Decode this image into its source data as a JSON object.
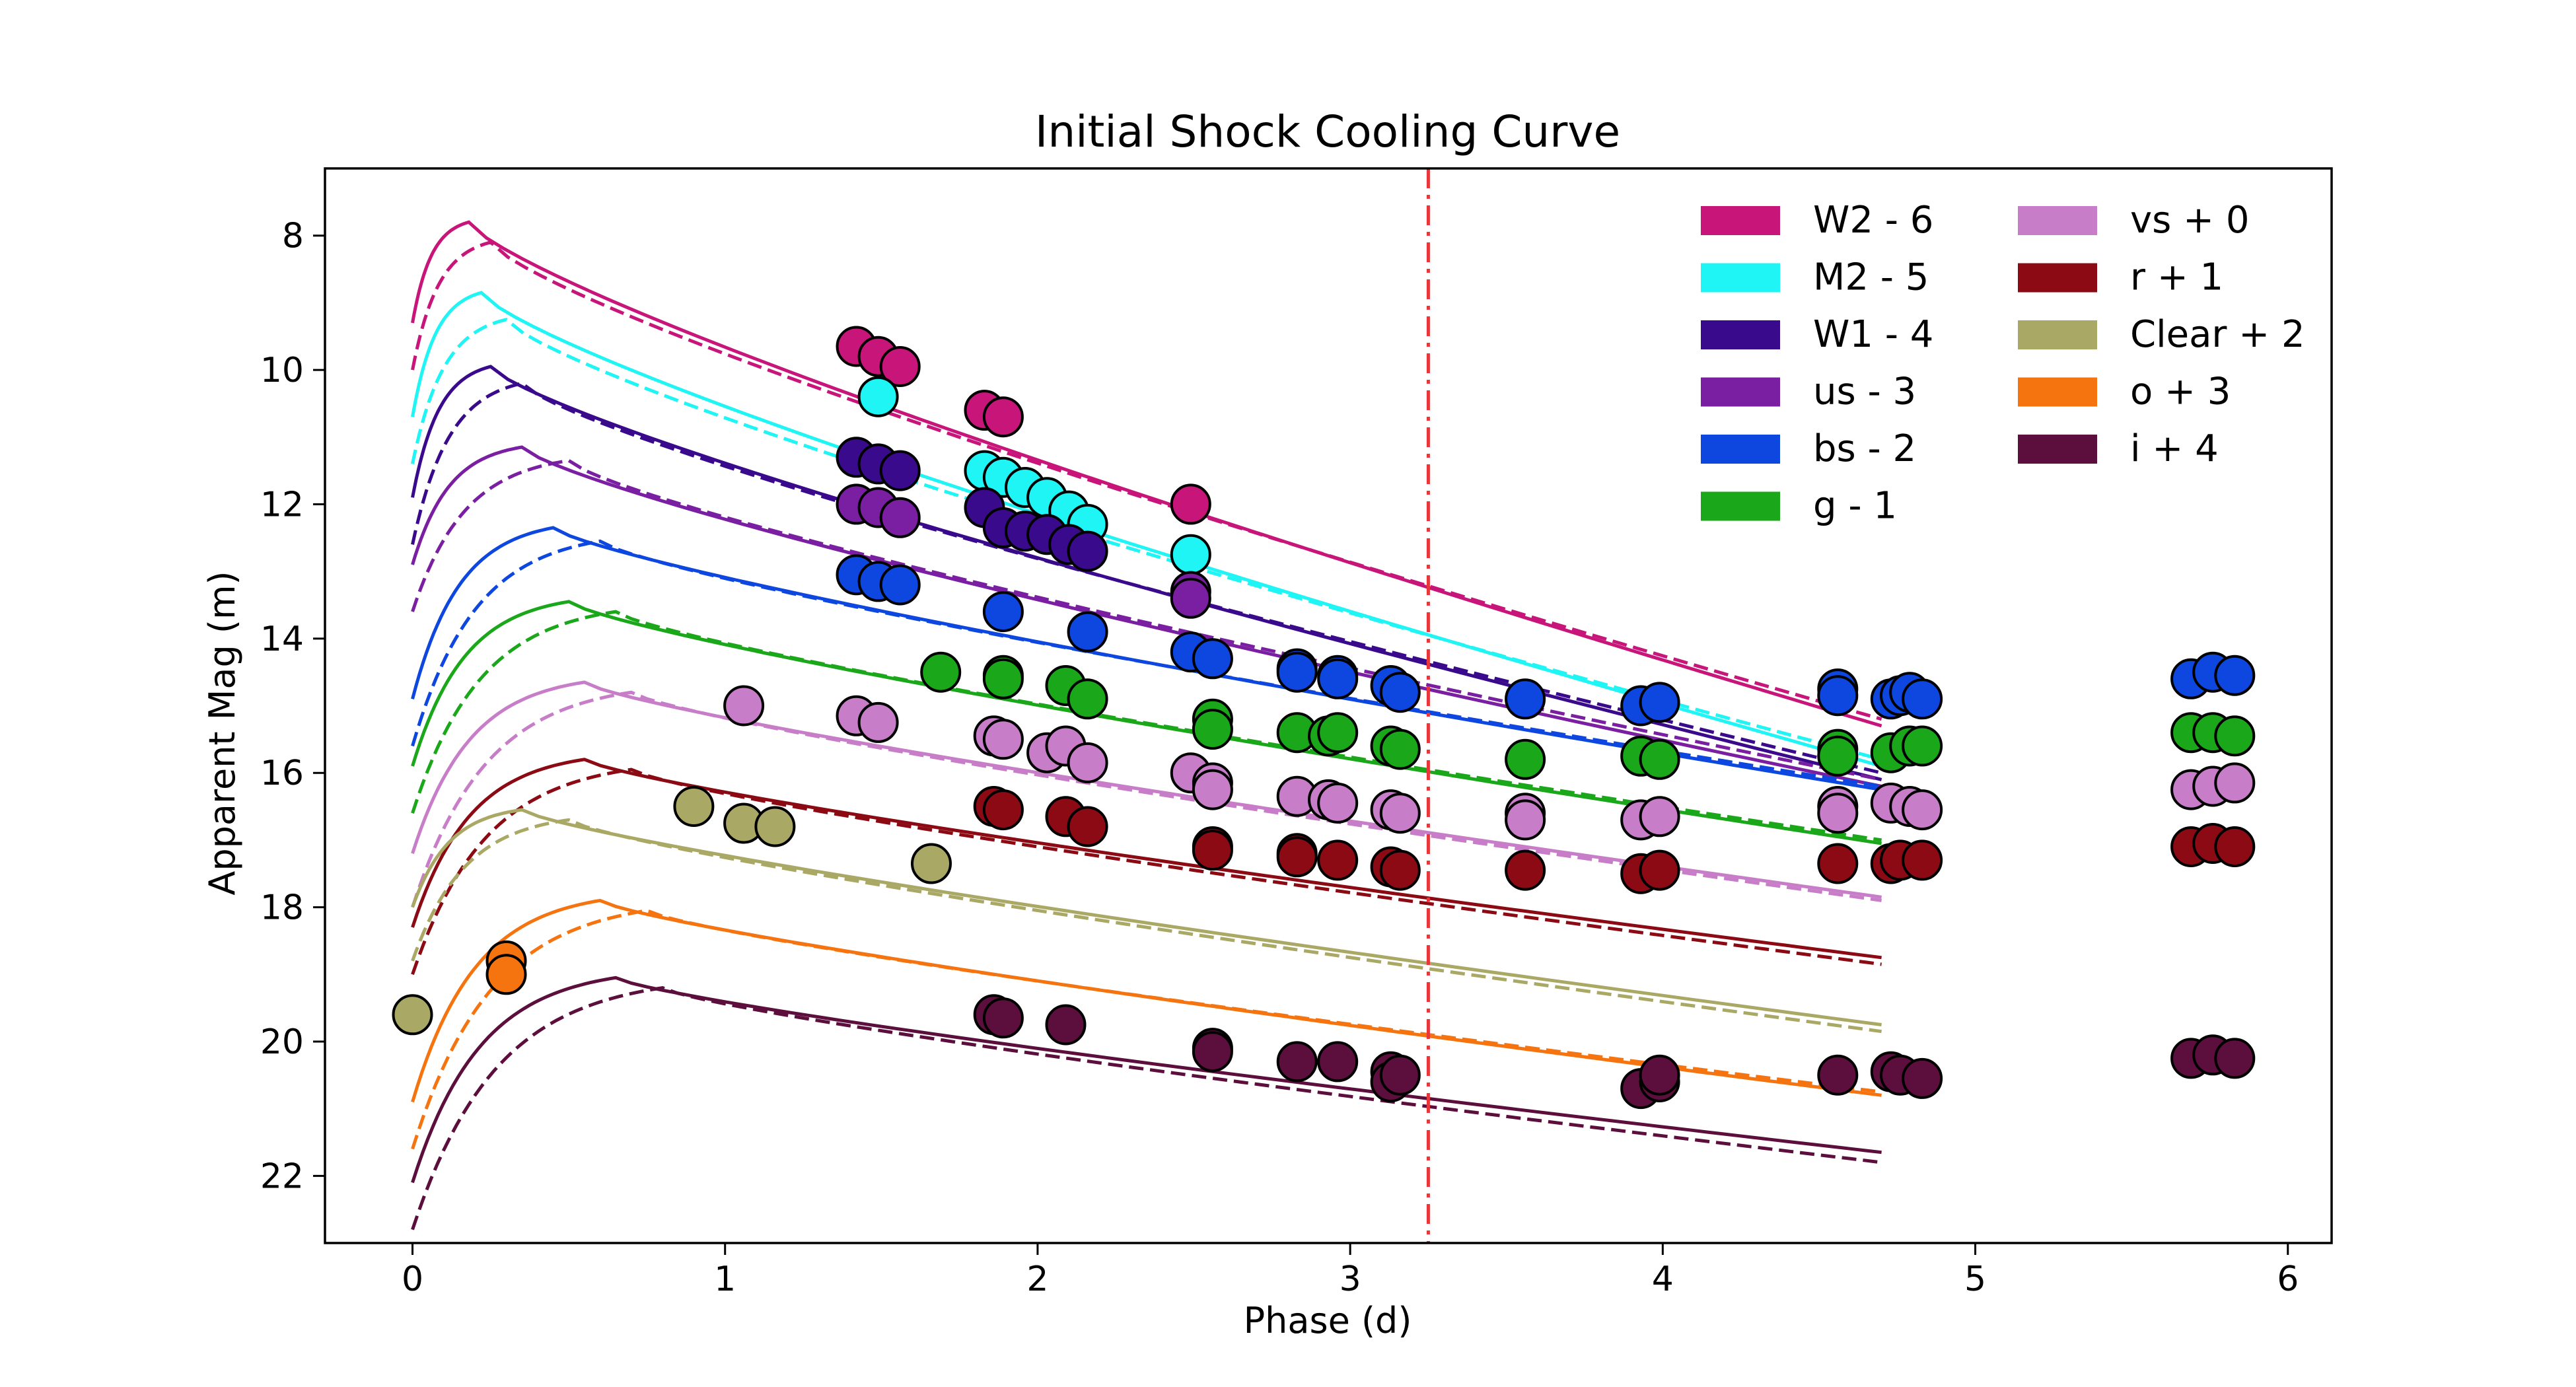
{
  "chart_data": {
    "type": "scatter",
    "title": "Initial Shock Cooling Curve",
    "xlabel": "Phase (d)",
    "ylabel": "Apparent Mag (m)",
    "xlim": [
      -0.28,
      6.14
    ],
    "ylim": [
      23.0,
      7.0
    ],
    "y_inverted": true,
    "x_ticks": [
      0,
      1,
      2,
      3,
      4,
      5,
      6
    ],
    "y_ticks": [
      8,
      10,
      12,
      14,
      16,
      18,
      20,
      22
    ],
    "grid": false,
    "legend_position": "top-right",
    "legend_columns": 2,
    "vertical_line": {
      "x": 3.25,
      "color": "#e8363a",
      "style": "dash-dot"
    },
    "model_lines": "solid and dashed model curves drawn per band",
    "series": [
      {
        "name": "W2 - 6",
        "color": "#c8157a",
        "model": {
          "t0": 0.0,
          "m0": 9.3,
          "peak_t": 0.18,
          "peak_m": 7.8,
          "end_t": 4.7,
          "end_m": 15.3
        },
        "model_dashed": {
          "t0": 0.0,
          "m0": 10.0,
          "peak_t": 0.25,
          "peak_m": 8.1,
          "end_t": 4.7,
          "end_m": 15.2
        },
        "points": [
          [
            1.42,
            9.65
          ],
          [
            1.49,
            9.8
          ],
          [
            1.56,
            9.95
          ],
          [
            1.83,
            10.6
          ],
          [
            1.89,
            10.7
          ],
          [
            2.49,
            12.0
          ]
        ]
      },
      {
        "name": "M2 - 5",
        "color": "#1ff5f5",
        "model": {
          "t0": 0.0,
          "m0": 10.7,
          "peak_t": 0.22,
          "peak_m": 8.85,
          "end_t": 4.7,
          "end_m": 15.9
        },
        "model_dashed": {
          "t0": 0.0,
          "m0": 11.4,
          "peak_t": 0.3,
          "peak_m": 9.25,
          "end_t": 4.7,
          "end_m": 15.8
        },
        "points": [
          [
            1.49,
            10.4
          ],
          [
            1.83,
            11.5
          ],
          [
            1.89,
            11.6
          ],
          [
            1.96,
            11.75
          ],
          [
            2.03,
            11.9
          ],
          [
            2.1,
            12.1
          ],
          [
            2.16,
            12.3
          ],
          [
            2.49,
            12.75
          ]
        ]
      },
      {
        "name": "W1 - 4",
        "color": "#3a0a8c",
        "model": {
          "t0": 0.0,
          "m0": 11.9,
          "peak_t": 0.25,
          "peak_m": 9.95,
          "end_t": 4.7,
          "end_m": 16.1
        },
        "model_dashed": {
          "t0": 0.0,
          "m0": 12.6,
          "peak_t": 0.35,
          "peak_m": 10.2,
          "end_t": 4.7,
          "end_m": 16.0
        },
        "points": [
          [
            1.42,
            11.3
          ],
          [
            1.49,
            11.4
          ],
          [
            1.56,
            11.5
          ],
          [
            1.83,
            12.05
          ],
          [
            1.89,
            12.35
          ],
          [
            1.96,
            12.4
          ],
          [
            2.03,
            12.45
          ],
          [
            2.1,
            12.6
          ],
          [
            2.16,
            12.7
          ]
        ]
      },
      {
        "name": "us - 3",
        "color": "#7b1fa2",
        "model": {
          "t0": 0.0,
          "m0": 12.9,
          "peak_t": 0.35,
          "peak_m": 11.15,
          "end_t": 4.7,
          "end_m": 16.2
        },
        "model_dashed": {
          "t0": 0.0,
          "m0": 13.6,
          "peak_t": 0.5,
          "peak_m": 11.35,
          "end_t": 4.7,
          "end_m": 16.1
        },
        "points": [
          [
            1.42,
            12.0
          ],
          [
            1.49,
            12.05
          ],
          [
            1.56,
            12.2
          ],
          [
            2.49,
            13.3
          ],
          [
            2.49,
            13.4
          ]
        ]
      },
      {
        "name": "bs - 2",
        "color": "#0d47e0",
        "model": {
          "t0": 0.0,
          "m0": 14.9,
          "peak_t": 0.45,
          "peak_m": 12.35,
          "end_t": 4.7,
          "end_m": 16.25
        },
        "model_dashed": {
          "t0": 0.0,
          "m0": 15.6,
          "peak_t": 0.6,
          "peak_m": 12.55,
          "end_t": 4.7,
          "end_m": 16.2
        },
        "points": [
          [
            1.42,
            13.05
          ],
          [
            1.49,
            13.15
          ],
          [
            1.56,
            13.2
          ],
          [
            1.89,
            13.6
          ],
          [
            2.16,
            13.9
          ],
          [
            2.49,
            14.2
          ],
          [
            2.56,
            14.3
          ],
          [
            2.83,
            14.45
          ],
          [
            2.83,
            14.5
          ],
          [
            2.96,
            14.55
          ],
          [
            2.96,
            14.6
          ],
          [
            3.13,
            14.7
          ],
          [
            3.16,
            14.8
          ],
          [
            3.56,
            14.9
          ],
          [
            3.93,
            15.0
          ],
          [
            3.99,
            14.95
          ],
          [
            4.56,
            14.75
          ],
          [
            4.56,
            14.85
          ],
          [
            4.73,
            14.9
          ],
          [
            4.76,
            14.85
          ],
          [
            4.79,
            14.8
          ],
          [
            4.83,
            14.9
          ],
          [
            5.69,
            14.6
          ],
          [
            5.76,
            14.5
          ],
          [
            5.83,
            14.55
          ]
        ]
      },
      {
        "name": "g - 1",
        "color": "#1aa81a",
        "model": {
          "t0": 0.0,
          "m0": 15.9,
          "peak_t": 0.5,
          "peak_m": 13.45,
          "end_t": 4.7,
          "end_m": 17.05
        },
        "model_dashed": {
          "t0": 0.0,
          "m0": 16.6,
          "peak_t": 0.65,
          "peak_m": 13.6,
          "end_t": 4.7,
          "end_m": 17.0
        },
        "points": [
          [
            1.69,
            14.5
          ],
          [
            1.89,
            14.55
          ],
          [
            1.89,
            14.6
          ],
          [
            2.09,
            14.7
          ],
          [
            2.16,
            14.9
          ],
          [
            2.56,
            15.2
          ],
          [
            2.56,
            15.35
          ],
          [
            2.83,
            15.4
          ],
          [
            2.93,
            15.45
          ],
          [
            2.96,
            15.4
          ],
          [
            3.13,
            15.6
          ],
          [
            3.16,
            15.65
          ],
          [
            3.56,
            15.8
          ],
          [
            3.93,
            15.75
          ],
          [
            3.99,
            15.8
          ],
          [
            4.56,
            15.65
          ],
          [
            4.56,
            15.75
          ],
          [
            4.73,
            15.7
          ],
          [
            4.79,
            15.6
          ],
          [
            4.83,
            15.6
          ],
          [
            5.69,
            15.4
          ],
          [
            5.76,
            15.4
          ],
          [
            5.83,
            15.45
          ]
        ]
      },
      {
        "name": "vs + 0",
        "color": "#c77dc7",
        "model": {
          "t0": 0.0,
          "m0": 17.2,
          "peak_t": 0.55,
          "peak_m": 14.65,
          "end_t": 4.7,
          "end_m": 17.85
        },
        "model_dashed": {
          "t0": 0.0,
          "m0": 18.0,
          "peak_t": 0.7,
          "peak_m": 14.8,
          "end_t": 4.7,
          "end_m": 17.9
        },
        "points": [
          [
            1.06,
            15.0
          ],
          [
            1.42,
            15.15
          ],
          [
            1.49,
            15.25
          ],
          [
            1.86,
            15.45
          ],
          [
            1.89,
            15.5
          ],
          [
            2.03,
            15.7
          ],
          [
            2.09,
            15.6
          ],
          [
            2.16,
            15.85
          ],
          [
            2.49,
            16.0
          ],
          [
            2.56,
            16.15
          ],
          [
            2.56,
            16.25
          ],
          [
            2.83,
            16.35
          ],
          [
            2.93,
            16.4
          ],
          [
            2.96,
            16.45
          ],
          [
            3.13,
            16.55
          ],
          [
            3.16,
            16.6
          ],
          [
            3.56,
            16.6
          ],
          [
            3.56,
            16.7
          ],
          [
            3.93,
            16.7
          ],
          [
            3.99,
            16.65
          ],
          [
            4.56,
            16.5
          ],
          [
            4.56,
            16.6
          ],
          [
            4.73,
            16.45
          ],
          [
            4.79,
            16.5
          ],
          [
            4.83,
            16.55
          ],
          [
            5.69,
            16.25
          ],
          [
            5.76,
            16.2
          ],
          [
            5.83,
            16.15
          ]
        ]
      },
      {
        "name": "r + 1",
        "color": "#8b0a13",
        "model": {
          "t0": 0.0,
          "m0": 18.3,
          "peak_t": 0.55,
          "peak_m": 15.8,
          "end_t": 4.7,
          "end_m": 18.75
        },
        "model_dashed": {
          "t0": 0.0,
          "m0": 19.0,
          "peak_t": 0.7,
          "peak_m": 15.95,
          "end_t": 4.7,
          "end_m": 18.85
        },
        "points": [
          [
            1.86,
            16.5
          ],
          [
            1.89,
            16.55
          ],
          [
            2.09,
            16.65
          ],
          [
            2.16,
            16.8
          ],
          [
            2.56,
            17.1
          ],
          [
            2.56,
            17.15
          ],
          [
            2.83,
            17.2
          ],
          [
            2.83,
            17.25
          ],
          [
            2.96,
            17.3
          ],
          [
            3.13,
            17.4
          ],
          [
            3.16,
            17.45
          ],
          [
            3.56,
            17.45
          ],
          [
            3.93,
            17.5
          ],
          [
            3.99,
            17.45
          ],
          [
            4.56,
            17.35
          ],
          [
            4.73,
            17.35
          ],
          [
            4.76,
            17.3
          ],
          [
            4.83,
            17.3
          ],
          [
            5.69,
            17.1
          ],
          [
            5.76,
            17.05
          ],
          [
            5.83,
            17.1
          ]
        ]
      },
      {
        "name": "Clear + 2",
        "color": "#aaa865",
        "model": {
          "t0": 0.0,
          "m0": 18.0,
          "peak_t": 0.35,
          "peak_m": 16.55,
          "end_t": 4.7,
          "end_m": 19.75
        },
        "model_dashed": {
          "t0": 0.0,
          "m0": 18.8,
          "peak_t": 0.5,
          "peak_m": 16.7,
          "end_t": 4.7,
          "end_m": 19.85
        },
        "points": [
          [
            0.0,
            19.6
          ],
          [
            0.9,
            16.5
          ],
          [
            1.06,
            16.75
          ],
          [
            1.16,
            16.8
          ],
          [
            1.66,
            17.35
          ]
        ]
      },
      {
        "name": "o + 3",
        "color": "#f5740f",
        "model": {
          "t0": 0.0,
          "m0": 20.9,
          "peak_t": 0.6,
          "peak_m": 17.9,
          "end_t": 4.7,
          "end_m": 20.8
        },
        "model_dashed": {
          "t0": 0.0,
          "m0": 21.6,
          "peak_t": 0.75,
          "peak_m": 18.05,
          "end_t": 4.7,
          "end_m": 20.75
        },
        "points": [
          [
            0.3,
            18.8
          ],
          [
            0.3,
            19.0
          ]
        ]
      },
      {
        "name": "i + 4",
        "color": "#5c0f3c",
        "model": {
          "t0": 0.0,
          "m0": 22.1,
          "peak_t": 0.65,
          "peak_m": 19.05,
          "end_t": 4.7,
          "end_m": 21.65
        },
        "model_dashed": {
          "t0": 0.0,
          "m0": 22.8,
          "peak_t": 0.8,
          "peak_m": 19.2,
          "end_t": 4.7,
          "end_m": 21.8
        },
        "points": [
          [
            1.86,
            19.6
          ],
          [
            1.89,
            19.65
          ],
          [
            2.09,
            19.75
          ],
          [
            2.56,
            20.1
          ],
          [
            2.56,
            20.15
          ],
          [
            2.83,
            20.3
          ],
          [
            2.96,
            20.3
          ],
          [
            3.13,
            20.45
          ],
          [
            3.13,
            20.6
          ],
          [
            3.16,
            20.5
          ],
          [
            3.93,
            20.7
          ],
          [
            3.99,
            20.6
          ],
          [
            3.99,
            20.5
          ],
          [
            4.56,
            20.5
          ],
          [
            4.73,
            20.45
          ],
          [
            4.76,
            20.5
          ],
          [
            4.83,
            20.55
          ],
          [
            5.69,
            20.25
          ],
          [
            5.76,
            20.2
          ],
          [
            5.83,
            20.25
          ]
        ]
      }
    ]
  }
}
